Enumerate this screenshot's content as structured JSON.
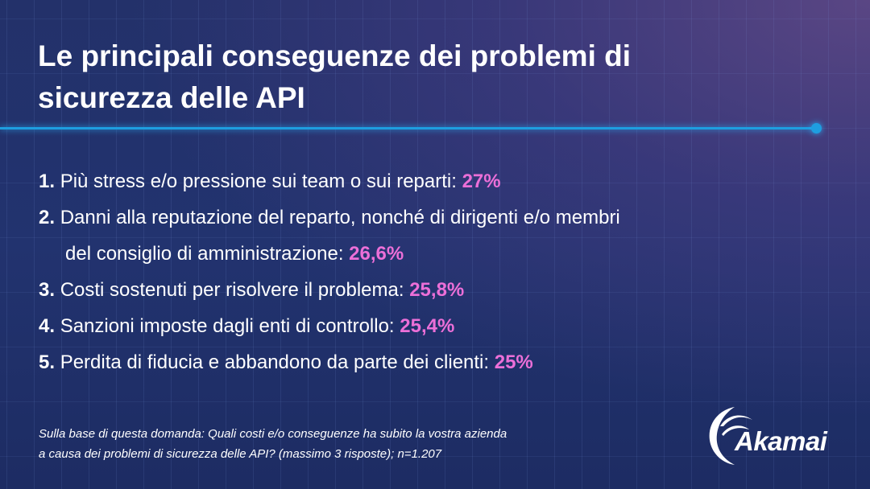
{
  "title": "Le principali conseguenze dei problemi di sicurezza delle API",
  "items": [
    {
      "num": "1.",
      "text": "Più stress e/o pressione sui team o sui reparti: ",
      "pct": "27%"
    },
    {
      "num": "2.",
      "text": "Danni alla reputazione del reparto, nonché di dirigenti e/o membri",
      "text2": "del consiglio di amministrazione: ",
      "pct": "26,6%"
    },
    {
      "num": "3.",
      "text": "Costi sostenuti per risolvere il problema: ",
      "pct": "25,8%"
    },
    {
      "num": "4.",
      "text": "Sanzioni imposte dagli enti di controllo: ",
      "pct": "25,4%"
    },
    {
      "num": "5.",
      "text": "Perdita di fiducia e abbandono da parte dei clienti: ",
      "pct": "25%"
    }
  ],
  "footnote": {
    "line1": "Sulla base di questa domanda: Quali costi e/o conseguenze ha subito la vostra azienda",
    "line2": "a causa dei problemi di sicurezza delle API? (massimo 3 risposte);  n=1.207"
  },
  "logo": {
    "text": "Akamai"
  },
  "colors": {
    "accent": "#ec6fd8",
    "line": "#1e9ee0"
  }
}
